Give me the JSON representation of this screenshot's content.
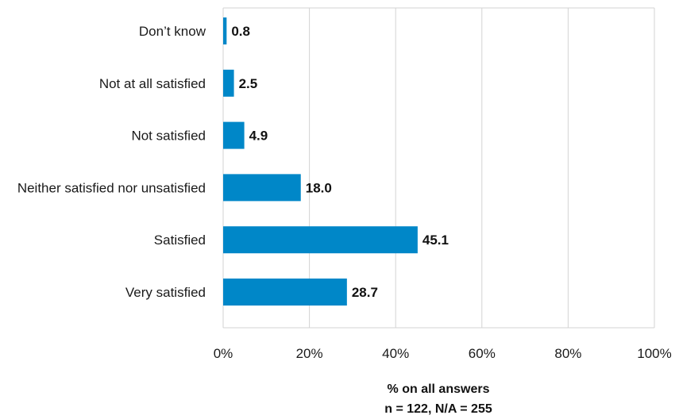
{
  "chart_data": {
    "type": "bar",
    "orientation": "horizontal",
    "categories": [
      "Don’t know",
      "Not at all satisfied",
      "Not satisfied",
      "Neither satisfied nor unsatisfied",
      "Satisfied",
      "Very satisfied"
    ],
    "values": [
      0.8,
      2.5,
      4.9,
      18.0,
      45.1,
      28.7
    ],
    "value_labels": [
      "0.8",
      "2.5",
      "4.9",
      "18.0",
      "45.1",
      "28.7"
    ],
    "xlim": [
      0,
      100
    ],
    "xticks": [
      0,
      20,
      40,
      60,
      80,
      100
    ],
    "xtick_labels": [
      "0%",
      "20%",
      "40%",
      "60%",
      "80%",
      "100%"
    ],
    "xlabel": "% on all answers",
    "note": "n = 122, N/A = 255",
    "grid": "vertical",
    "bar_color": "#0087c8",
    "grid_color": "#d3d3d3"
  }
}
